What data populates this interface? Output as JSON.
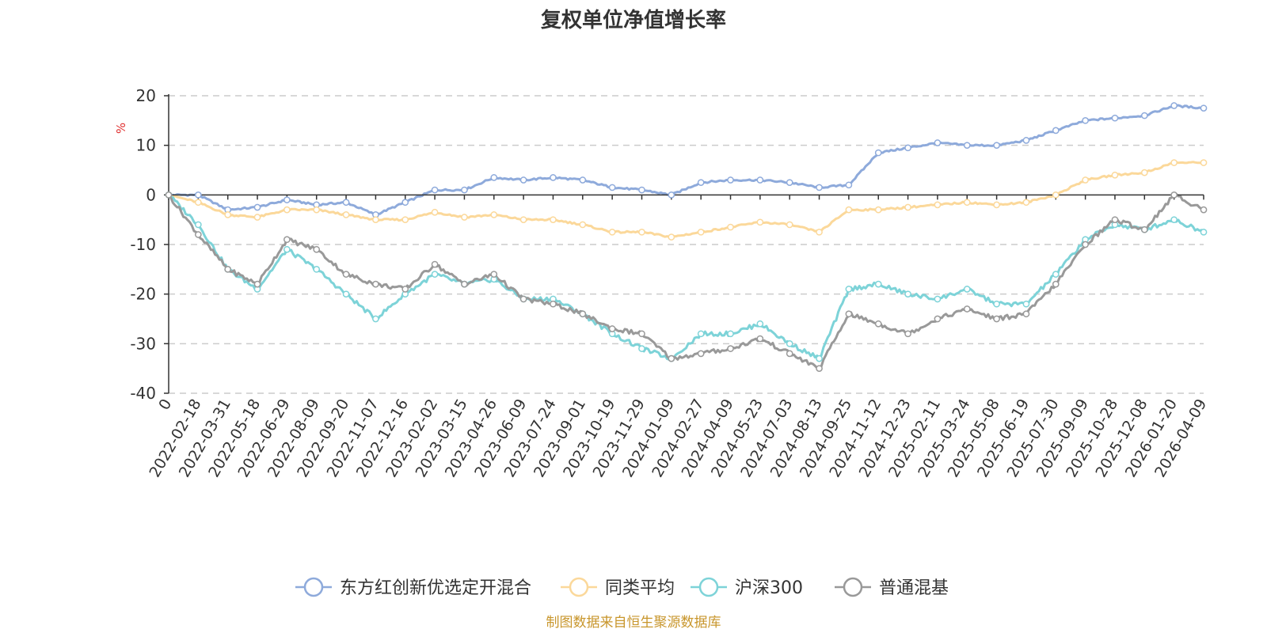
{
  "colors": {
    "fund": "#8eaadb",
    "peer_avg": "#fbd89a",
    "hs300": "#7dd3d8",
    "hybrid": "#999999",
    "source": "#c8962c"
  },
  "source_note": "制图数据来自恒生聚源数据库",
  "chart_data": {
    "type": "line",
    "title": "复权单位净值增长率",
    "ylabel": "%",
    "xlabel": "",
    "ylim": [
      -40,
      20
    ],
    "yticks": [
      "20",
      "10",
      "0",
      "-10",
      "-20",
      "-30",
      "-40"
    ],
    "ytick_values": [
      20,
      10,
      0,
      -10,
      -20,
      -30,
      -40
    ],
    "categories": [
      "0",
      "2022-02-18",
      "2022-03-31",
      "2022-05-18",
      "2022-06-29",
      "2022-08-09",
      "2022-09-20",
      "2022-11-07",
      "2022-12-16",
      "2023-02-02",
      "2023-03-15",
      "2023-04-26",
      "2023-06-09",
      "2023-07-24",
      "2023-09-01",
      "2023-10-19",
      "2023-11-29",
      "2024-01-09",
      "2024-02-27",
      "2024-04-09",
      "2024-05-23",
      "2024-07-03",
      "2024-08-13",
      "2024-09-25",
      "2024-11-12",
      "2024-12-23",
      "2025-02-11",
      "2025-03-24",
      "2025-05-08",
      "2025-06-19",
      "2025-07-30",
      "2025-09-09",
      "2025-10-28",
      "2025-12-08",
      "2026-01-20",
      "2026-04-09"
    ],
    "grid": true,
    "legend_position": "bottom",
    "series": [
      {
        "name": "东方红创新优选定开混合",
        "color_key": "fund",
        "values": [
          0,
          0,
          -3,
          -2.5,
          -1,
          -2,
          -1.5,
          -4,
          -1.5,
          1,
          1,
          3.5,
          3,
          3.5,
          3,
          1.5,
          1,
          0,
          2.5,
          3,
          3,
          2.5,
          1.5,
          2,
          8.5,
          9.5,
          10.5,
          10,
          10,
          11,
          13,
          15,
          15.5,
          16,
          18,
          17.5
        ]
      },
      {
        "name": "同类平均",
        "color_key": "peer_avg",
        "values": [
          0,
          -1.5,
          -4,
          -4.5,
          -3,
          -3,
          -4,
          -5,
          -5,
          -3.5,
          -4.5,
          -4,
          -5,
          -5,
          -6,
          -7.5,
          -7.5,
          -8.5,
          -7.5,
          -6.5,
          -5.5,
          -6,
          -7.5,
          -3,
          -3,
          -2.5,
          -2,
          -1.5,
          -2,
          -1.5,
          0,
          3,
          4,
          4.5,
          6.5,
          6.5
        ]
      },
      {
        "name": "沪深300",
        "color_key": "hs300",
        "values": [
          0,
          -6,
          -15,
          -19,
          -11,
          -15,
          -20,
          -25,
          -20,
          -16,
          -18,
          -17,
          -21,
          -21,
          -24,
          -28,
          -31,
          -33,
          -28,
          -28,
          -26,
          -30,
          -33,
          -19,
          -18,
          -20,
          -21,
          -19,
          -22,
          -22,
          -16,
          -9,
          -6,
          -7,
          -5,
          -7.5
        ]
      },
      {
        "name": "普通混基",
        "color_key": "hybrid",
        "values": [
          0,
          -8,
          -15,
          -18,
          -9,
          -11,
          -16,
          -18,
          -19,
          -14,
          -18,
          -16,
          -21,
          -22,
          -24,
          -27,
          -28,
          -33,
          -32,
          -31,
          -29,
          -32,
          -35,
          -24,
          -26,
          -28,
          -25,
          -23,
          -25,
          -24,
          -18,
          -10,
          -5,
          -7,
          0,
          -3
        ]
      }
    ]
  }
}
